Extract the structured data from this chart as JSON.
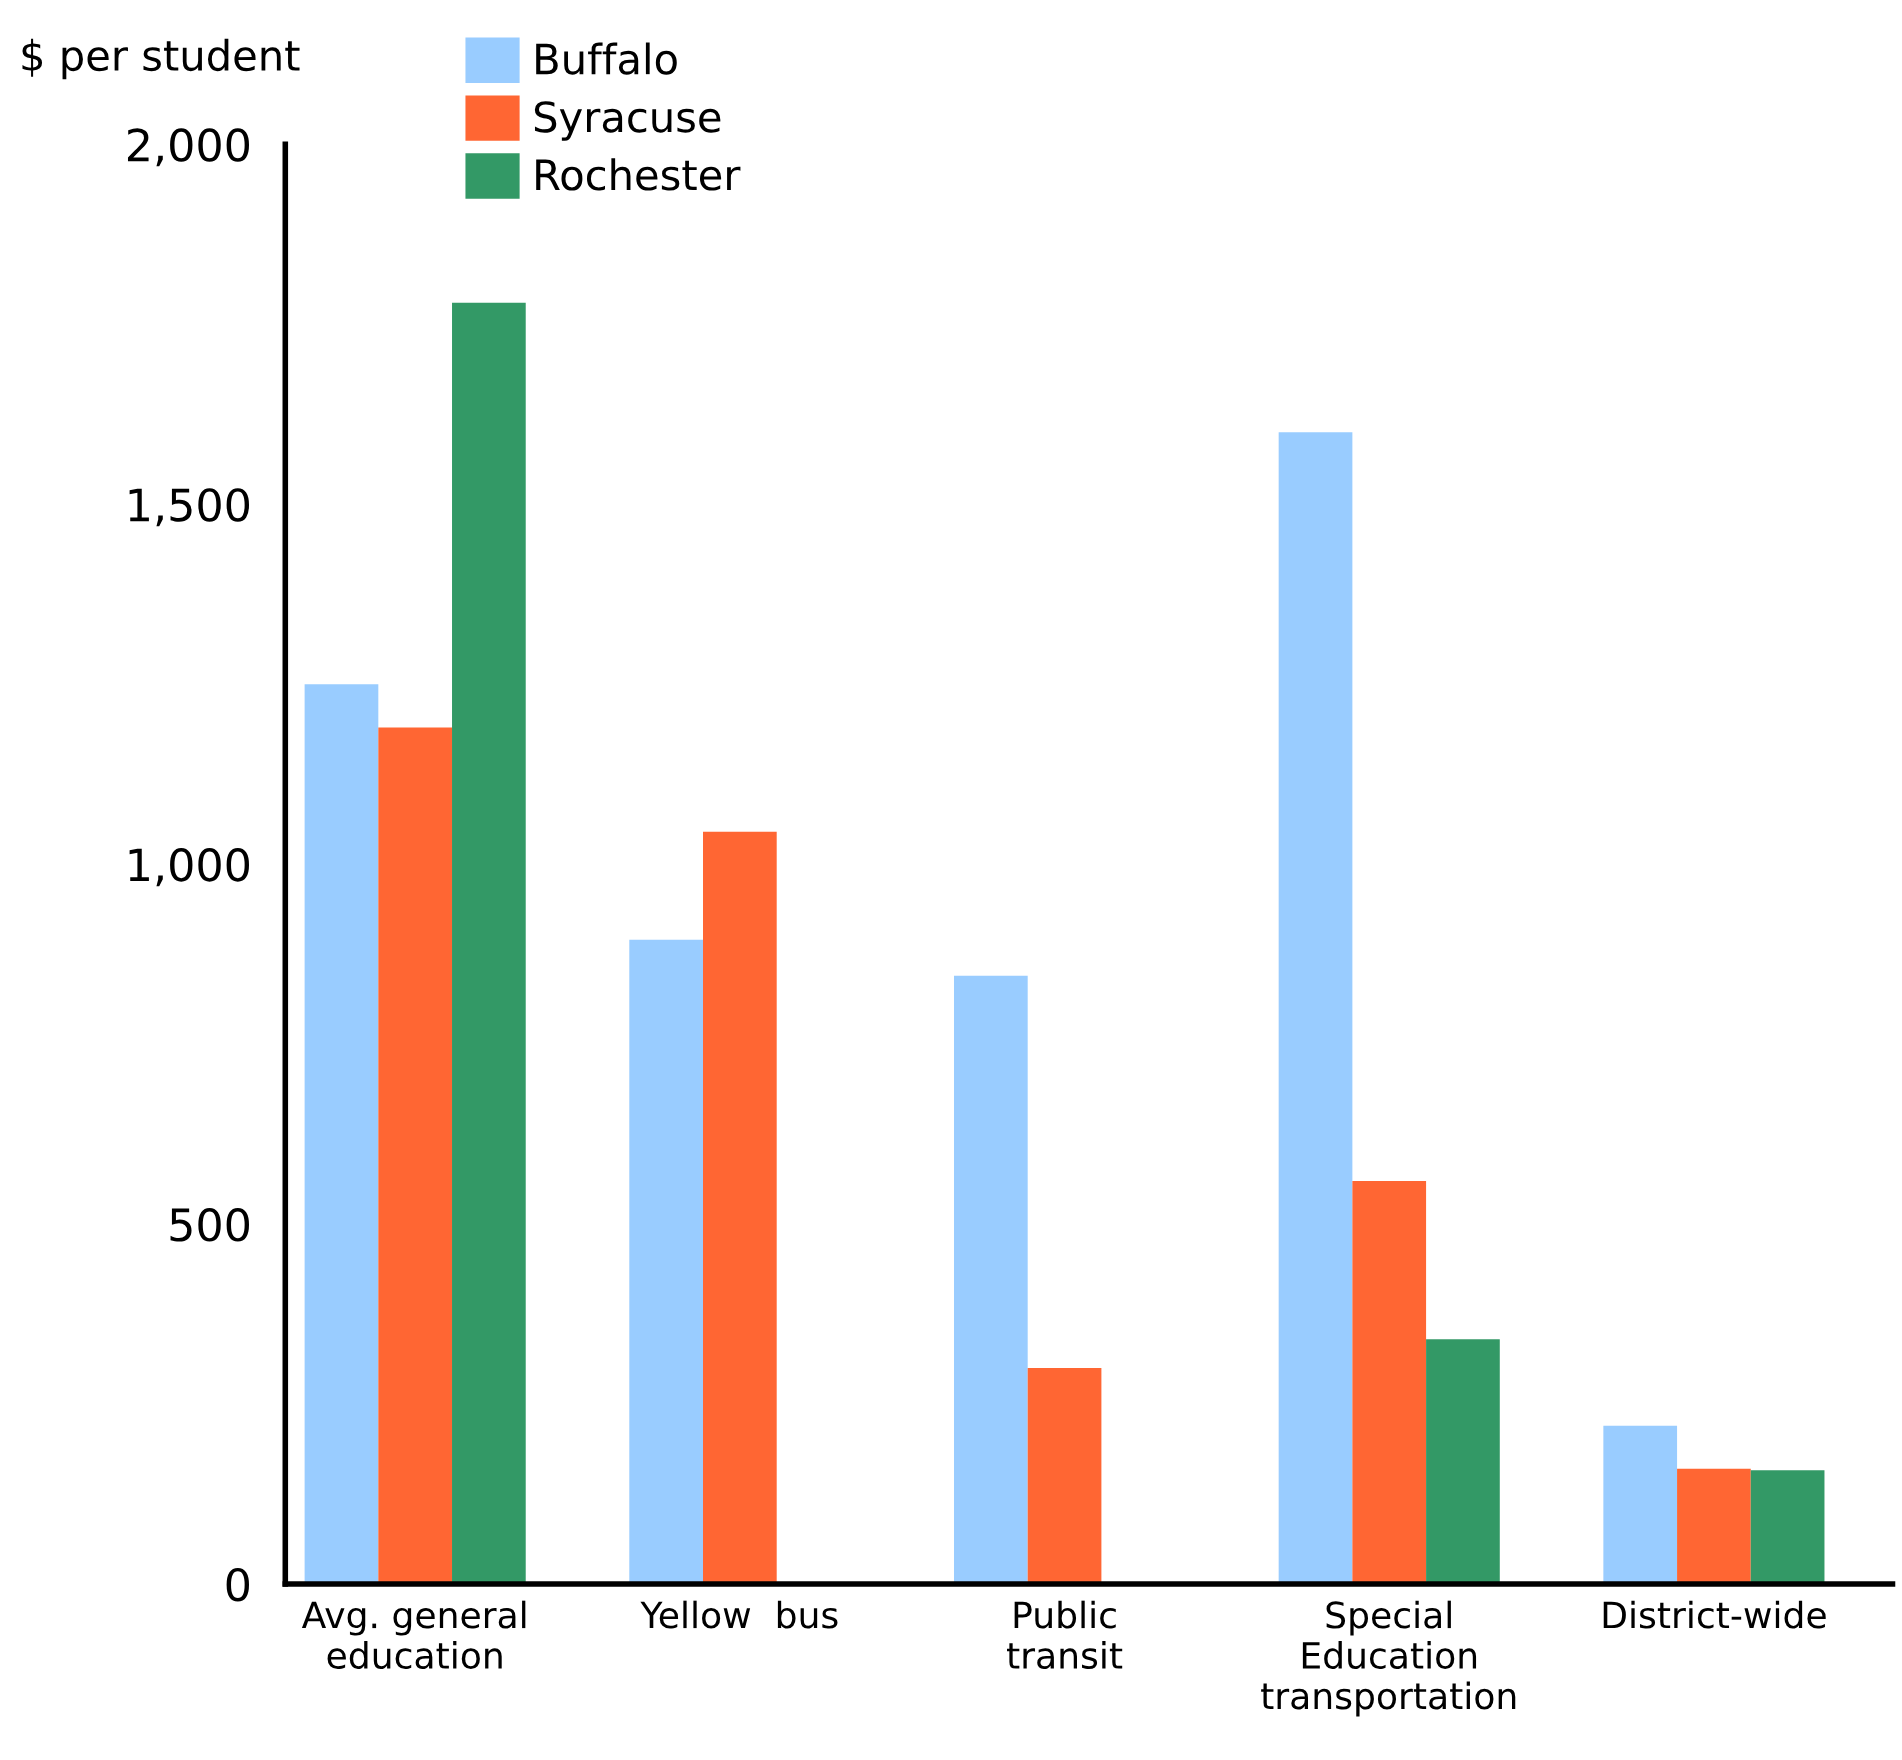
{
  "chart_data": {
    "type": "bar",
    "ylabel": "$ per student",
    "categories": [
      "Avg. general\neducation",
      "Yellow  bus",
      "Public\ntransit",
      "Special\nEducation\ntransportation",
      "District-wide"
    ],
    "series": [
      {
        "name": "Buffalo",
        "color": "#99ccff",
        "values": [
          1250,
          895,
          845,
          1600,
          220
        ]
      },
      {
        "name": "Syracuse",
        "color": "#ff6633",
        "values": [
          1190,
          1045,
          300,
          560,
          160
        ]
      },
      {
        "name": "Rochester",
        "color": "#339966",
        "values": [
          1780,
          null,
          null,
          340,
          158
        ]
      }
    ],
    "ylim": [
      0,
      2000
    ],
    "yticks": [
      {
        "value": 0,
        "label": "0"
      },
      {
        "value": 500,
        "label": "500"
      },
      {
        "value": 1000,
        "label": "1,000"
      },
      {
        "value": 1500,
        "label": "1,500"
      },
      {
        "value": 2000,
        "label": "2,000"
      }
    ],
    "grid": false,
    "legend": "top left"
  }
}
